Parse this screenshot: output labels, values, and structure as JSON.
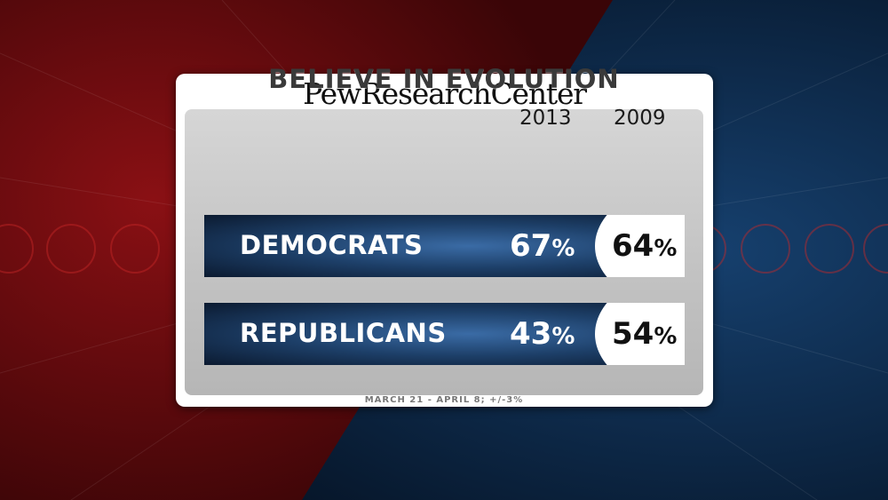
{
  "brand": {
    "logo_text": "PewResearchCenter"
  },
  "colors": {
    "background_left": "#7a0c10",
    "background_right": "#0d2a4c",
    "bar_dark": "#0b1a30",
    "bar_light": "#3a6ba5"
  },
  "chart_data": {
    "type": "table",
    "title": "BELIEVE IN EVOLUTION",
    "columns": [
      "2013",
      "2009"
    ],
    "rows": [
      {
        "label": "DEMOCRATS",
        "v2013": "67",
        "v2009": "64",
        "unit": "%"
      },
      {
        "label": "REPUBLICANS",
        "v2013": "43",
        "v2009": "54",
        "unit": "%"
      }
    ],
    "series": [
      {
        "name": "2013",
        "values": [
          67,
          43
        ]
      },
      {
        "name": "2009",
        "values": [
          64,
          54
        ]
      }
    ],
    "categories": [
      "DEMOCRATS",
      "REPUBLICANS"
    ],
    "footnote": "MARCH 21 - APRIL 8; +/-3%"
  }
}
